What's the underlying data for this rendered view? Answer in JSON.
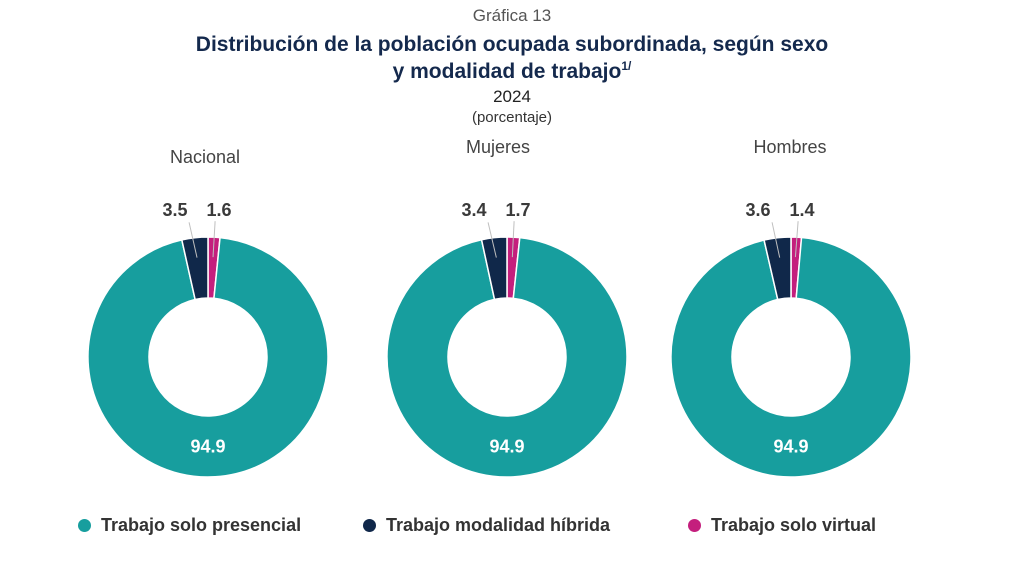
{
  "header": {
    "kicker": "Gráfica 13",
    "title_line1": "Distribución de la población ocupada subordinada, según sexo",
    "title_line2": "y modalidad de trabajo",
    "title_footnote": "1/",
    "year": "2024",
    "unit": "(porcentaje)"
  },
  "colors": {
    "presencial": "#179e9e",
    "hibrida": "#10284a",
    "virtual": "#c41f7d",
    "title": "#14294d"
  },
  "legend": {
    "presencial": "Trabajo solo presencial",
    "hibrida": "Trabajo modalidad híbrida",
    "virtual": "Trabajo solo virtual"
  },
  "chart_data": [
    {
      "type": "pie",
      "style": "donut",
      "title": "Nacional",
      "categories": [
        "Trabajo solo presencial",
        "Trabajo modalidad híbrida",
        "Trabajo solo virtual"
      ],
      "values": [
        94.9,
        3.5,
        1.6
      ],
      "labels": [
        "94.9",
        "3.5",
        "1.6"
      ]
    },
    {
      "type": "pie",
      "style": "donut",
      "title": "Mujeres",
      "categories": [
        "Trabajo solo presencial",
        "Trabajo modalidad híbrida",
        "Trabajo solo virtual"
      ],
      "values": [
        94.9,
        3.4,
        1.7
      ],
      "labels": [
        "94.9",
        "3.4",
        "1.7"
      ]
    },
    {
      "type": "pie",
      "style": "donut",
      "title": "Hombres",
      "categories": [
        "Trabajo solo presencial",
        "Trabajo modalidad híbrida",
        "Trabajo solo virtual"
      ],
      "values": [
        94.9,
        3.6,
        1.4
      ],
      "labels": [
        "94.9",
        "3.6",
        "1.4"
      ]
    }
  ]
}
